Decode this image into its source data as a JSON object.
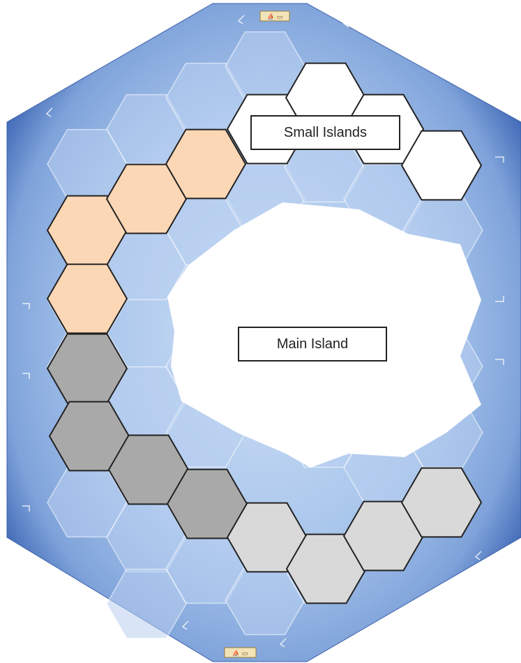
{
  "labels": {
    "small_islands": "Small Islands",
    "main_island": "Main Island"
  },
  "colors": {
    "sea": "#9bbbe3",
    "sea_frame": "#3e67b5",
    "orange": "#fcd7b5",
    "dark_gray": "#a9a9a9",
    "light_gray": "#d9d9d9",
    "white": "#ffffff"
  },
  "hex_groups": {
    "orange": [
      "orange",
      "orange",
      "orange",
      "orange",
      "orange"
    ],
    "dark_gray": [
      "dark-gray",
      "dark-gray",
      "dark-gray",
      "dark-gray"
    ],
    "light_gray": [
      "light-gray",
      "light-gray",
      "light-gray",
      "light-gray",
      "light-gray"
    ],
    "small_islands": [
      "white",
      "white",
      "white",
      "white"
    ]
  },
  "icons": {
    "top_marker": "ship-tile-icon",
    "bottom_marker": "ship-tile-icon"
  }
}
